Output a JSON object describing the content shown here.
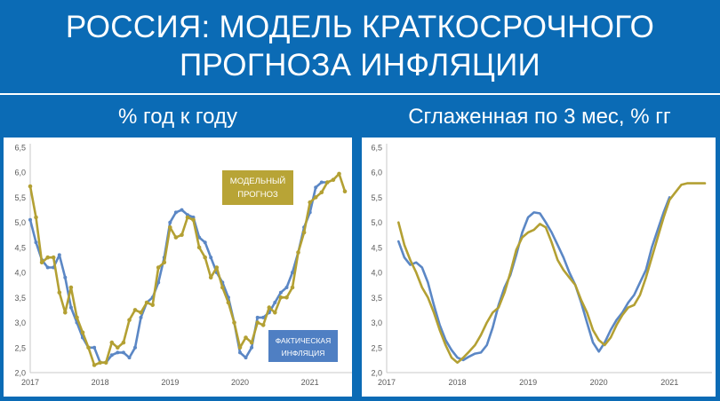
{
  "header": {
    "title_line1": "РОССИЯ: МОДЕЛЬ КРАТКОСРОЧНОГО",
    "title_line2": "ПРОГНОЗА ИНФЛЯЦИИ"
  },
  "colors": {
    "background": "#0b6bb5",
    "model": "#b3a033",
    "actual": "#5b87c5",
    "model_label_bg": "#b8a436",
    "actual_label_bg": "#4f7fc3"
  },
  "chart_data": [
    {
      "type": "line",
      "title": "% год к году",
      "ylim": [
        2.0,
        6.5
      ],
      "yticks": [
        "2,0",
        "2,5",
        "3,0",
        "3,5",
        "4,0",
        "4,5",
        "5,0",
        "5,5",
        "6,0",
        "6,5"
      ],
      "xlim": [
        2017.0,
        2021.5
      ],
      "xticks": [
        "2017",
        "2018",
        "2019",
        "2020",
        "2021"
      ],
      "grid": false,
      "annotations": [
        "МОДЕЛЬНЫЙ ПРОГНОЗ",
        "ФАКТИЧЕСКАЯ ИНФЛЯЦИЯ"
      ],
      "series": [
        {
          "key": "actual",
          "color": "#5b87c5",
          "x": [
            2017.0,
            2017.083,
            2017.167,
            2017.25,
            2017.333,
            2017.417,
            2017.5,
            2017.583,
            2017.667,
            2017.75,
            2017.833,
            2017.917,
            2018.0,
            2018.083,
            2018.167,
            2018.25,
            2018.333,
            2018.417,
            2018.5,
            2018.583,
            2018.667,
            2018.75,
            2018.833,
            2018.917,
            2019.0,
            2019.083,
            2019.167,
            2019.25,
            2019.333,
            2019.417,
            2019.5,
            2019.583,
            2019.667,
            2019.75,
            2019.833,
            2019.917,
            2020.0,
            2020.083,
            2020.167,
            2020.25,
            2020.333,
            2020.417,
            2020.5,
            2020.583,
            2020.667,
            2020.75,
            2020.833,
            2020.917,
            2021.0,
            2021.083,
            2021.167,
            2021.25
          ],
          "y": [
            5.05,
            4.6,
            4.25,
            4.1,
            4.1,
            4.35,
            3.9,
            3.3,
            3.0,
            2.7,
            2.5,
            2.5,
            2.2,
            2.2,
            2.35,
            2.4,
            2.4,
            2.3,
            2.5,
            3.1,
            3.4,
            3.5,
            3.8,
            4.3,
            5.0,
            5.2,
            5.25,
            5.15,
            5.1,
            4.7,
            4.6,
            4.3,
            4.0,
            3.8,
            3.5,
            3.0,
            2.4,
            2.3,
            2.5,
            3.1,
            3.1,
            3.2,
            3.4,
            3.6,
            3.7,
            4.0,
            4.4,
            4.9,
            5.2,
            5.7,
            5.8,
            5.8
          ]
        },
        {
          "key": "model",
          "color": "#b3a033",
          "x": [
            2017.0,
            2017.083,
            2017.167,
            2017.25,
            2017.333,
            2017.417,
            2017.5,
            2017.583,
            2017.667,
            2017.75,
            2017.833,
            2017.917,
            2018.0,
            2018.083,
            2018.167,
            2018.25,
            2018.333,
            2018.417,
            2018.5,
            2018.583,
            2018.667,
            2018.75,
            2018.833,
            2018.917,
            2019.0,
            2019.083,
            2019.167,
            2019.25,
            2019.333,
            2019.417,
            2019.5,
            2019.583,
            2019.667,
            2019.75,
            2019.833,
            2019.917,
            2020.0,
            2020.083,
            2020.167,
            2020.25,
            2020.333,
            2020.417,
            2020.5,
            2020.583,
            2020.667,
            2020.75,
            2020.833,
            2020.917,
            2021.0,
            2021.083,
            2021.167,
            2021.25,
            2021.333,
            2021.417,
            2021.5
          ],
          "y": [
            5.72,
            5.1,
            4.2,
            4.3,
            4.3,
            3.6,
            3.2,
            3.7,
            3.1,
            2.8,
            2.5,
            2.15,
            2.2,
            2.2,
            2.6,
            2.5,
            2.6,
            3.05,
            3.25,
            3.2,
            3.4,
            3.35,
            4.1,
            4.2,
            4.9,
            4.7,
            4.75,
            5.1,
            5.05,
            4.5,
            4.3,
            3.9,
            4.1,
            3.7,
            3.4,
            3.0,
            2.5,
            2.7,
            2.6,
            3.0,
            2.95,
            3.3,
            3.2,
            3.5,
            3.5,
            3.7,
            4.4,
            4.8,
            5.4,
            5.5,
            5.6,
            5.8,
            5.85,
            5.97,
            5.62
          ]
        }
      ]
    },
    {
      "type": "line",
      "title": "Сглаженная по 3 мес, % гг",
      "ylim": [
        2.0,
        6.5
      ],
      "yticks": [
        "2,0",
        "2,5",
        "3,0",
        "3,5",
        "4,0",
        "4,5",
        "5,0",
        "5,5",
        "6,0",
        "6,5"
      ],
      "xlim": [
        2017.0,
        2021.5
      ],
      "xticks": [
        "2017",
        "2018",
        "2019",
        "2020",
        "2021"
      ],
      "grid": false,
      "series": [
        {
          "key": "actual",
          "color": "#5b87c5",
          "x": [
            2017.167,
            2017.25,
            2017.333,
            2017.417,
            2017.5,
            2017.583,
            2017.667,
            2017.75,
            2017.833,
            2017.917,
            2018.0,
            2018.083,
            2018.167,
            2018.25,
            2018.333,
            2018.417,
            2018.5,
            2018.583,
            2018.667,
            2018.75,
            2018.833,
            2018.917,
            2019.0,
            2019.083,
            2019.167,
            2019.25,
            2019.333,
            2019.417,
            2019.5,
            2019.583,
            2019.667,
            2019.75,
            2019.833,
            2019.917,
            2020.0,
            2020.083,
            2020.167,
            2020.25,
            2020.333,
            2020.417,
            2020.5,
            2020.583,
            2020.667,
            2020.75,
            2020.833,
            2020.917,
            2021.0
          ],
          "y": [
            4.62,
            4.3,
            4.15,
            4.2,
            4.1,
            3.8,
            3.35,
            2.95,
            2.65,
            2.45,
            2.3,
            2.25,
            2.32,
            2.38,
            2.4,
            2.55,
            2.9,
            3.35,
            3.7,
            3.95,
            4.35,
            4.8,
            5.1,
            5.2,
            5.18,
            5.0,
            4.8,
            4.55,
            4.3,
            4.0,
            3.75,
            3.4,
            3.0,
            2.6,
            2.42,
            2.6,
            2.85,
            3.05,
            3.2,
            3.4,
            3.55,
            3.8,
            4.05,
            4.5,
            4.85,
            5.2,
            5.5
          ]
        },
        {
          "key": "model",
          "color": "#b3a033",
          "x": [
            2017.167,
            2017.25,
            2017.333,
            2017.417,
            2017.5,
            2017.583,
            2017.667,
            2017.75,
            2017.833,
            2017.917,
            2018.0,
            2018.083,
            2018.167,
            2018.25,
            2018.333,
            2018.417,
            2018.5,
            2018.583,
            2018.667,
            2018.75,
            2018.833,
            2018.917,
            2019.0,
            2019.083,
            2019.167,
            2019.25,
            2019.333,
            2019.417,
            2019.5,
            2019.583,
            2019.667,
            2019.75,
            2019.833,
            2019.917,
            2020.0,
            2020.083,
            2020.167,
            2020.25,
            2020.333,
            2020.417,
            2020.5,
            2020.583,
            2020.667,
            2020.75,
            2020.833,
            2020.917,
            2021.0,
            2021.083,
            2021.167,
            2021.25,
            2021.333,
            2021.417,
            2021.5
          ],
          "y": [
            5.0,
            4.55,
            4.25,
            4.0,
            3.7,
            3.5,
            3.2,
            2.85,
            2.55,
            2.3,
            2.2,
            2.3,
            2.42,
            2.55,
            2.75,
            3.0,
            3.2,
            3.3,
            3.6,
            4.0,
            4.45,
            4.7,
            4.8,
            4.85,
            4.97,
            4.9,
            4.6,
            4.25,
            4.05,
            3.9,
            3.75,
            3.45,
            3.2,
            2.85,
            2.65,
            2.55,
            2.7,
            2.95,
            3.15,
            3.3,
            3.35,
            3.55,
            3.9,
            4.3,
            4.7,
            5.1,
            5.45,
            5.6,
            5.75,
            5.78,
            5.78,
            5.78,
            5.78
          ]
        }
      ]
    }
  ]
}
